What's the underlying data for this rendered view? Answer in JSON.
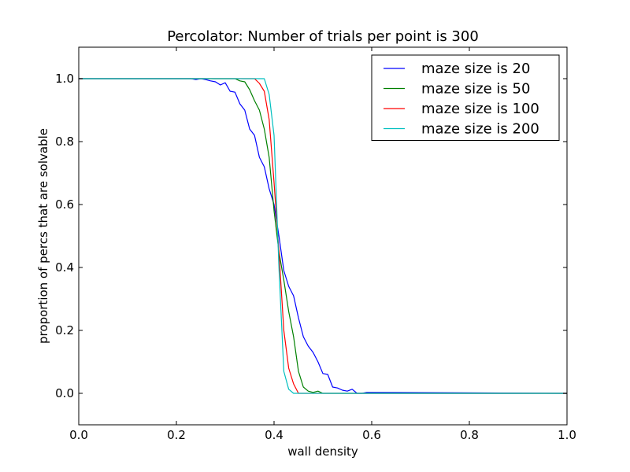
{
  "chart_data": {
    "type": "line",
    "title": "Percolator: Number of trials per point is 300",
    "xlabel": "wall density",
    "ylabel": "proportion of percs that are solvable",
    "xlim": [
      0.0,
      1.0
    ],
    "ylim": [
      -0.1,
      1.1
    ],
    "xticks": [
      "0.0",
      "0.2",
      "0.4",
      "0.6",
      "0.8",
      "1.0"
    ],
    "yticks": [
      "0.0",
      "0.2",
      "0.4",
      "0.6",
      "0.8",
      "1.0"
    ],
    "grid": false,
    "legend_position": "top-right",
    "series": [
      {
        "name": "maze size is 20",
        "color": "#0000ff",
        "x": [
          0.0,
          0.23,
          0.24,
          0.25,
          0.26,
          0.27,
          0.28,
          0.29,
          0.3,
          0.31,
          0.32,
          0.33,
          0.34,
          0.35,
          0.36,
          0.37,
          0.38,
          0.39,
          0.4,
          0.41,
          0.42,
          0.43,
          0.44,
          0.45,
          0.46,
          0.47,
          0.48,
          0.49,
          0.5,
          0.51,
          0.52,
          0.53,
          0.54,
          0.55,
          0.56,
          0.57,
          0.58,
          0.59,
          1.0
        ],
        "y": [
          1.0,
          1.0,
          0.997,
          1.0,
          0.997,
          0.993,
          0.99,
          0.98,
          0.987,
          0.96,
          0.957,
          0.92,
          0.9,
          0.84,
          0.82,
          0.75,
          0.72,
          0.65,
          0.6,
          0.5,
          0.39,
          0.34,
          0.31,
          0.24,
          0.18,
          0.15,
          0.13,
          0.1,
          0.063,
          0.06,
          0.02,
          0.017,
          0.01,
          0.007,
          0.013,
          0.0,
          0.0,
          0.003,
          0.0
        ]
      },
      {
        "name": "maze size is 50",
        "color": "#008000",
        "x": [
          0.0,
          0.32,
          0.33,
          0.34,
          0.35,
          0.36,
          0.37,
          0.38,
          0.39,
          0.4,
          0.41,
          0.42,
          0.43,
          0.44,
          0.45,
          0.46,
          0.47,
          0.48,
          0.49,
          0.5,
          0.51,
          1.0
        ],
        "y": [
          1.0,
          1.0,
          0.993,
          0.99,
          0.965,
          0.93,
          0.9,
          0.84,
          0.75,
          0.58,
          0.45,
          0.36,
          0.26,
          0.18,
          0.07,
          0.02,
          0.007,
          0.003,
          0.007,
          0.0,
          0.0,
          0.0
        ]
      },
      {
        "name": "maze size is 100",
        "color": "#ff0000",
        "x": [
          0.0,
          0.36,
          0.37,
          0.38,
          0.39,
          0.4,
          0.41,
          0.42,
          0.43,
          0.44,
          0.45,
          1.0
        ],
        "y": [
          1.0,
          1.0,
          0.985,
          0.96,
          0.87,
          0.67,
          0.45,
          0.2,
          0.08,
          0.03,
          0.0,
          0.0
        ]
      },
      {
        "name": "maze size is 200",
        "color": "#00bfbf",
        "x": [
          0.0,
          0.38,
          0.39,
          0.4,
          0.41,
          0.42,
          0.43,
          0.44,
          0.45,
          1.0
        ],
        "y": [
          1.0,
          1.0,
          0.95,
          0.82,
          0.4,
          0.07,
          0.013,
          0.0,
          0.0,
          0.0
        ]
      }
    ]
  }
}
